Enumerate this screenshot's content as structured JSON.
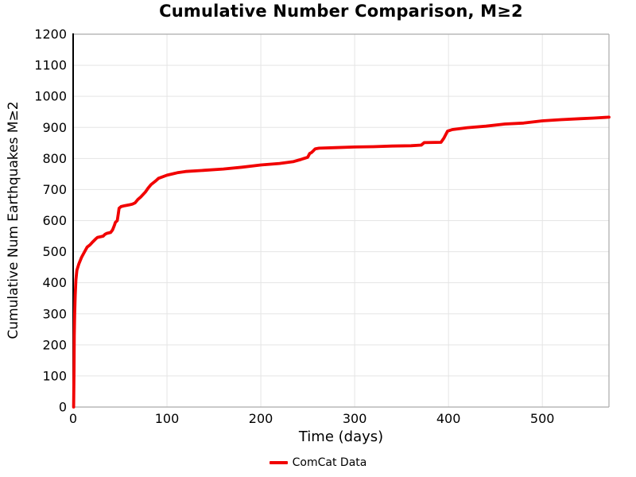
{
  "chart_data": {
    "type": "line",
    "title": "Cumulative Number Comparison, M≥2",
    "xlabel": "Time (days)",
    "ylabel": "Cumulative Num Earthquakes M≥2",
    "xlim": [
      0,
      571
    ],
    "ylim": [
      0,
      1200
    ],
    "xticks": [
      0,
      100,
      200,
      300,
      400,
      500
    ],
    "yticks": [
      0,
      100,
      200,
      300,
      400,
      500,
      600,
      700,
      800,
      900,
      1000,
      1100,
      1200
    ],
    "grid": true,
    "colors": {
      "line": "#f10000",
      "grid": "#e5e5e5",
      "spines": "#ababab",
      "left_spine": "#000000",
      "text": "#000000"
    },
    "legend": {
      "position": "bottom-center",
      "entries": [
        {
          "label": "ComCat Data",
          "color": "#f10000"
        }
      ]
    },
    "series": [
      {
        "name": "ComCat Data",
        "color": "#f10000",
        "points": [
          [
            0.5,
            0
          ],
          [
            0.9,
            120
          ],
          [
            1.2,
            230
          ],
          [
            1.6,
            300
          ],
          [
            2.2,
            360
          ],
          [
            3,
            410
          ],
          [
            4,
            440
          ],
          [
            6,
            460
          ],
          [
            9,
            482
          ],
          [
            13,
            504
          ],
          [
            15,
            515
          ],
          [
            18,
            522
          ],
          [
            21,
            532
          ],
          [
            24,
            541
          ],
          [
            26,
            546
          ],
          [
            32,
            550
          ],
          [
            34,
            556
          ],
          [
            36,
            559
          ],
          [
            40,
            562
          ],
          [
            42,
            570
          ],
          [
            44,
            585
          ],
          [
            45,
            594
          ],
          [
            47,
            600
          ],
          [
            48,
            620
          ],
          [
            49,
            640
          ],
          [
            51,
            645
          ],
          [
            55,
            648
          ],
          [
            60,
            651
          ],
          [
            63,
            653
          ],
          [
            66,
            657
          ],
          [
            69,
            668
          ],
          [
            72,
            676
          ],
          [
            77,
            692
          ],
          [
            80,
            705
          ],
          [
            83,
            716
          ],
          [
            88,
            728
          ],
          [
            91,
            736
          ],
          [
            100,
            746
          ],
          [
            108,
            752
          ],
          [
            111,
            754
          ],
          [
            120,
            758
          ],
          [
            140,
            762
          ],
          [
            160,
            766
          ],
          [
            180,
            772
          ],
          [
            200,
            779
          ],
          [
            220,
            784
          ],
          [
            235,
            790
          ],
          [
            243,
            797
          ],
          [
            247,
            801
          ],
          [
            250,
            804
          ],
          [
            252,
            816
          ],
          [
            254,
            819
          ],
          [
            256,
            825
          ],
          [
            258,
            831
          ],
          [
            262,
            833
          ],
          [
            280,
            835
          ],
          [
            300,
            837
          ],
          [
            320,
            838
          ],
          [
            340,
            840
          ],
          [
            360,
            841
          ],
          [
            371,
            843
          ],
          [
            374,
            851
          ],
          [
            392,
            852
          ],
          [
            395,
            865
          ],
          [
            399,
            888
          ],
          [
            404,
            893
          ],
          [
            420,
            899
          ],
          [
            440,
            904
          ],
          [
            460,
            911
          ],
          [
            480,
            914
          ],
          [
            500,
            921
          ],
          [
            520,
            925
          ],
          [
            540,
            928
          ],
          [
            555,
            930
          ],
          [
            571,
            933
          ]
        ]
      }
    ]
  }
}
